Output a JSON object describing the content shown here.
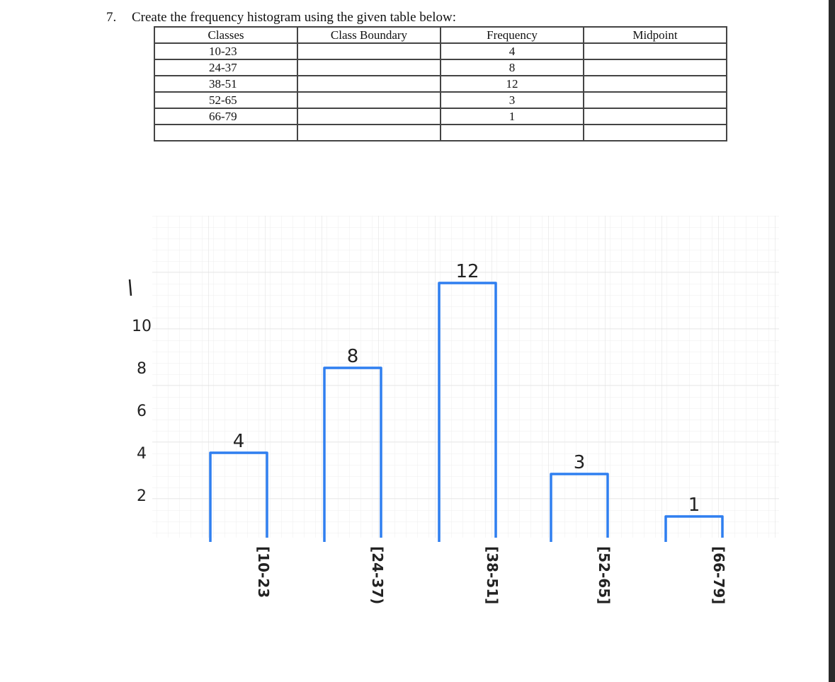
{
  "question": {
    "number": "7.",
    "text": "Create the frequency histogram using the given table below:"
  },
  "table": {
    "header": [
      "Classes",
      "Class Boundary",
      "Frequency",
      "Midpoint"
    ],
    "rows": [
      {
        "class": "10-23",
        "frequency": 4
      },
      {
        "class": "24-37",
        "frequency": 8
      },
      {
        "class": "38-51",
        "frequency": 12
      },
      {
        "class": "52-65",
        "frequency": 3
      },
      {
        "class": "66-79",
        "frequency": 1
      }
    ]
  },
  "chart_data": {
    "type": "bar",
    "categories": [
      "[10-23",
      "[24-37)",
      "[38-51]",
      "[52-65]",
      "[66-79]"
    ],
    "values": [
      4,
      8,
      12,
      3,
      1
    ],
    "color": "#2f7ff0",
    "ylim": [
      0,
      15
    ],
    "yticks": [
      2,
      4,
      6,
      8,
      10
    ],
    "grid": true
  }
}
